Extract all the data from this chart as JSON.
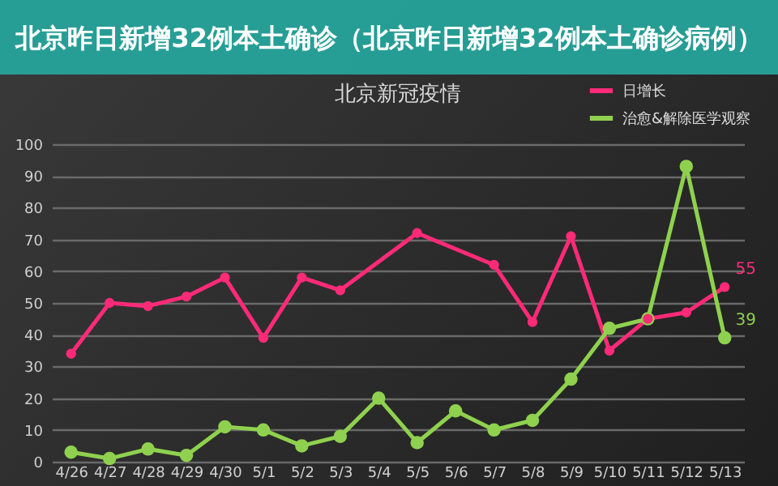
{
  "chart_data": {
    "type": "line",
    "title": "北京新冠疫情",
    "categories": [
      "4/26",
      "4/27",
      "4/28",
      "4/29",
      "4/30",
      "5/1",
      "5/2",
      "5/3",
      "5/4",
      "5/5",
      "5/6",
      "5/7",
      "5/8",
      "5/9",
      "5/10",
      "5/11",
      "5/12",
      "5/13"
    ],
    "series": [
      {
        "name": "日增长",
        "color": "#ff2a78",
        "values": [
          34,
          50,
          49,
          52,
          58,
          39,
          58,
          54,
          null,
          72,
          null,
          62,
          44,
          71,
          35,
          45,
          47,
          55
        ],
        "value_labels": [
          null,
          null,
          null,
          null,
          null,
          null,
          null,
          null,
          null,
          null,
          null,
          null,
          null,
          null,
          null,
          null,
          null,
          "55"
        ]
      },
      {
        "name": "治愈&解除医学观察",
        "color": "#8fd14f",
        "values": [
          3,
          1,
          4,
          2,
          11,
          10,
          5,
          8,
          20,
          6,
          16,
          10,
          13,
          26,
          42,
          45,
          93,
          39
        ],
        "value_labels": [
          null,
          null,
          null,
          null,
          null,
          null,
          null,
          null,
          null,
          null,
          null,
          null,
          null,
          null,
          null,
          null,
          null,
          "39"
        ]
      }
    ],
    "ylim": [
      0,
      100
    ],
    "yticks": [
      0,
      10,
      20,
      30,
      40,
      50,
      60,
      70,
      80,
      90,
      100
    ],
    "grid": "y",
    "legend": "top right",
    "marker": "circle",
    "line_style": "solid",
    "annotations": [
      "北京昨日新增32例本土确诊（北京昨日新增32例本土确诊病例）"
    ]
  }
}
